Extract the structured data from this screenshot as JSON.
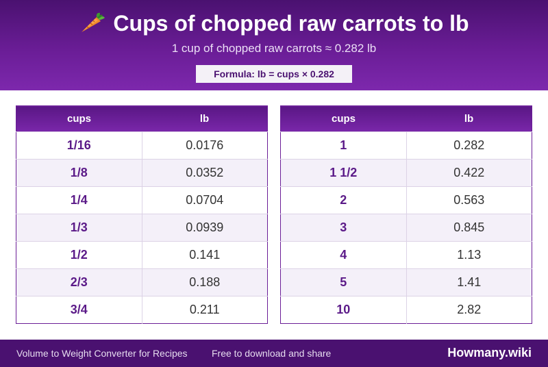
{
  "header": {
    "title": "Cups of chopped raw carrots to lb",
    "title_icon": "carrot-icon",
    "subtitle": "1 cup of chopped raw carrots ≈ 0.282 lb",
    "formula": "Formula: lb = cups × 0.282"
  },
  "colors": {
    "primary": "#6a1d96",
    "dark": "#4a1170",
    "accent_text": "#5b1a88",
    "alt_row": "#f4f0f9"
  },
  "tables": [
    {
      "headers": [
        "cups",
        "lb"
      ],
      "rows": [
        [
          "1/16",
          "0.0176"
        ],
        [
          "1/8",
          "0.0352"
        ],
        [
          "1/4",
          "0.0704"
        ],
        [
          "1/3",
          "0.0939"
        ],
        [
          "1/2",
          "0.141"
        ],
        [
          "2/3",
          "0.188"
        ],
        [
          "3/4",
          "0.211"
        ]
      ]
    },
    {
      "headers": [
        "cups",
        "lb"
      ],
      "rows": [
        [
          "1",
          "0.282"
        ],
        [
          "1 1/2",
          "0.422"
        ],
        [
          "2",
          "0.563"
        ],
        [
          "3",
          "0.845"
        ],
        [
          "4",
          "1.13"
        ],
        [
          "5",
          "1.41"
        ],
        [
          "10",
          "2.82"
        ]
      ]
    }
  ],
  "footer": {
    "left_text": "Volume to Weight Converter for Recipes",
    "middle_text": "Free to download and share",
    "brand": "Howmany.wiki"
  }
}
